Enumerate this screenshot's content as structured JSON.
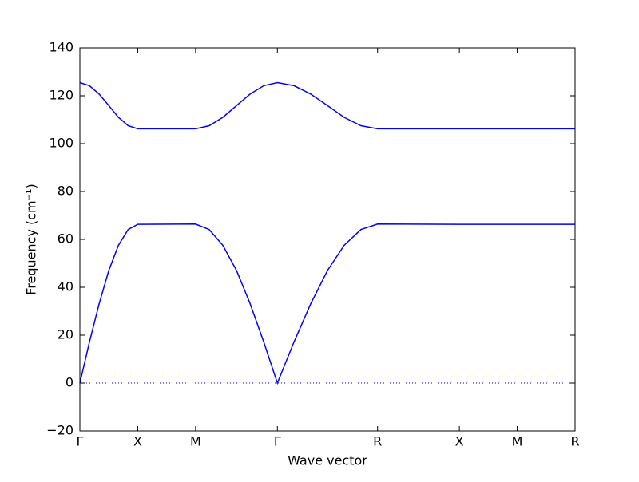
{
  "chart_data": {
    "type": "line",
    "x_label": "Wave vector",
    "y_label": "Frequency (cm⁻¹)",
    "x": [
      0,
      0.083,
      0.167,
      0.25,
      0.333,
      0.417,
      0.5,
      1.0,
      1.118,
      1.236,
      1.354,
      1.471,
      1.589,
      1.707,
      1.851,
      1.996,
      2.14,
      2.284,
      2.429,
      2.573,
      3.28,
      3.78,
      4.28
    ],
    "series": [
      {
        "color": "#0000ff",
        "values": [
          0,
          17.2,
          33.2,
          47.0,
          57.5,
          64.1,
          66.3,
          66.4,
          64.1,
          57.5,
          47.0,
          33.2,
          17.2,
          0,
          17.2,
          33.2,
          47.0,
          57.5,
          64.1,
          66.4,
          66.3,
          66.3,
          66.3
        ]
      },
      {
        "color": "#0000ff",
        "values": [
          125.5,
          124.2,
          120.7,
          115.9,
          111.0,
          107.5,
          106.2,
          106.2,
          107.5,
          111.0,
          115.9,
          120.7,
          124.2,
          125.5,
          124.2,
          120.7,
          115.9,
          111.0,
          107.5,
          106.2,
          106.2,
          106.2,
          106.2
        ]
      }
    ],
    "hline": 0,
    "xlim": [
      0,
      4.28
    ],
    "xticks": [
      {
        "value": 0,
        "label": "Γ"
      },
      {
        "value": 0.5,
        "label": "X"
      },
      {
        "value": 1.0,
        "label": "M"
      },
      {
        "value": 1.707,
        "label": "Γ"
      },
      {
        "value": 2.573,
        "label": "R"
      },
      {
        "value": 3.28,
        "label": "X"
      },
      {
        "value": 3.78,
        "label": "M"
      },
      {
        "value": 4.28,
        "label": "R"
      }
    ],
    "ylim": [
      -20,
      140
    ],
    "yticks": [
      {
        "value": -20,
        "label": "−20"
      },
      0,
      20,
      40,
      60,
      80,
      100,
      120,
      140
    ]
  }
}
